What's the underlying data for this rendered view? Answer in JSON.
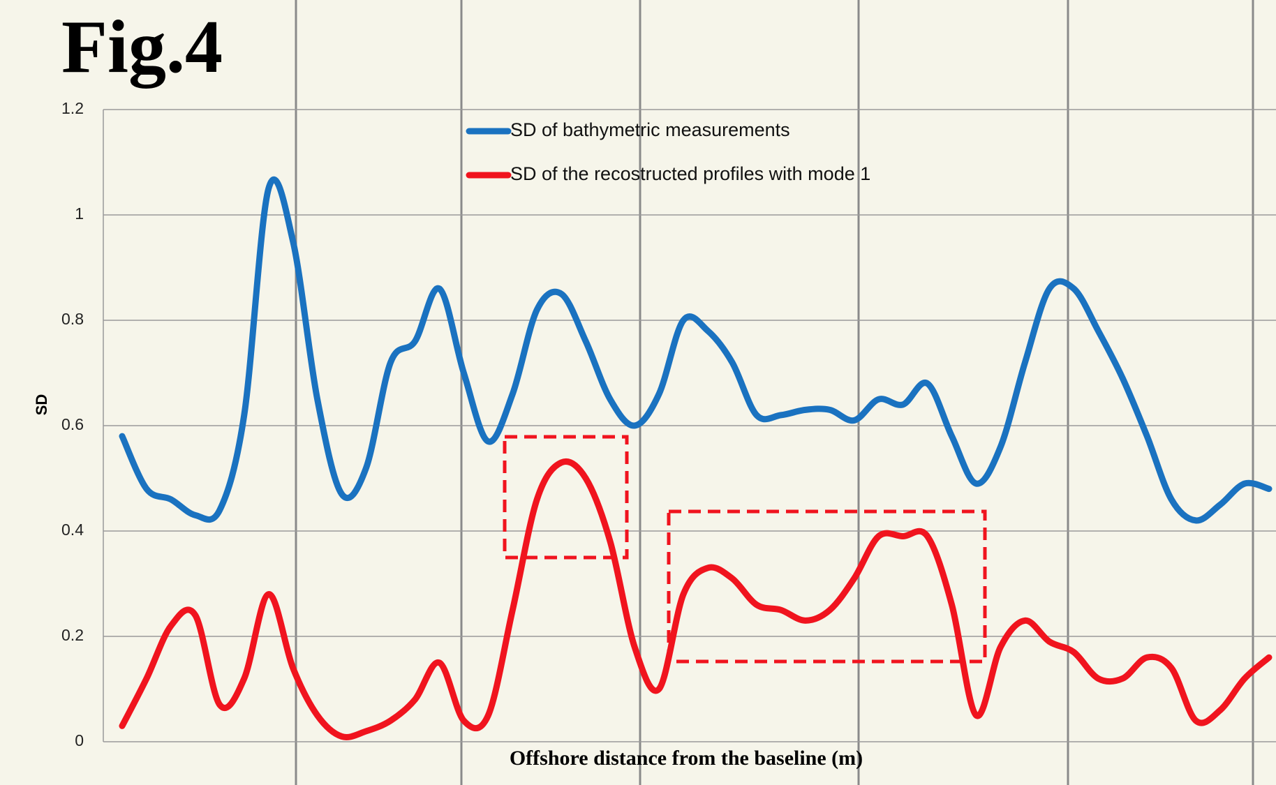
{
  "chart_data": {
    "type": "line",
    "title": "Fig.4",
    "xlabel": "Offshore distance from the baseline (m)",
    "ylabel": "SD",
    "categories": [
      null,
      null,
      null,
      null,
      null,
      null,
      null,
      null,
      null,
      null,
      null,
      null,
      null,
      null,
      null,
      null,
      null,
      null,
      null,
      null,
      null,
      null,
      null,
      null,
      null,
      null,
      null,
      null,
      null,
      null,
      null,
      null,
      null,
      null,
      null,
      null,
      null,
      null,
      null,
      null,
      null,
      null,
      null,
      null,
      null,
      null,
      null,
      null
    ],
    "series": [
      {
        "name": "SD of bathymetric measurements",
        "color": "#1a72c0",
        "values": [
          0.58,
          0.48,
          0.46,
          0.43,
          0.44,
          0.62,
          1.05,
          0.95,
          0.65,
          0.47,
          0.52,
          0.72,
          0.76,
          0.86,
          0.7,
          0.57,
          0.66,
          0.82,
          0.85,
          0.76,
          0.65,
          0.6,
          0.66,
          0.8,
          0.78,
          0.72,
          0.62,
          0.62,
          0.63,
          0.63,
          0.61,
          0.65,
          0.64,
          0.68,
          0.58,
          0.49,
          0.56,
          0.72,
          0.86,
          0.86,
          0.78,
          0.69,
          0.58,
          0.46,
          0.42,
          0.45,
          0.49,
          0.48
        ]
      },
      {
        "name": "SD of the recostructed profiles with mode 1",
        "color": "#f0141e",
        "values": [
          0.03,
          0.12,
          0.22,
          0.24,
          0.07,
          0.12,
          0.28,
          0.14,
          0.05,
          0.01,
          0.02,
          0.04,
          0.08,
          0.15,
          0.04,
          0.05,
          0.25,
          0.46,
          0.53,
          0.5,
          0.38,
          0.18,
          0.1,
          0.28,
          0.33,
          0.31,
          0.26,
          0.25,
          0.23,
          0.25,
          0.31,
          0.39,
          0.39,
          0.39,
          0.26,
          0.05,
          0.18,
          0.23,
          0.19,
          0.17,
          0.12,
          0.12,
          0.16,
          0.14,
          0.04,
          0.06,
          0.12,
          0.16
        ]
      }
    ],
    "ylim": [
      0,
      1.2
    ],
    "yticks": [
      0,
      0.2,
      0.4,
      0.6,
      0.8,
      1,
      1.2
    ],
    "grid": true
  }
}
